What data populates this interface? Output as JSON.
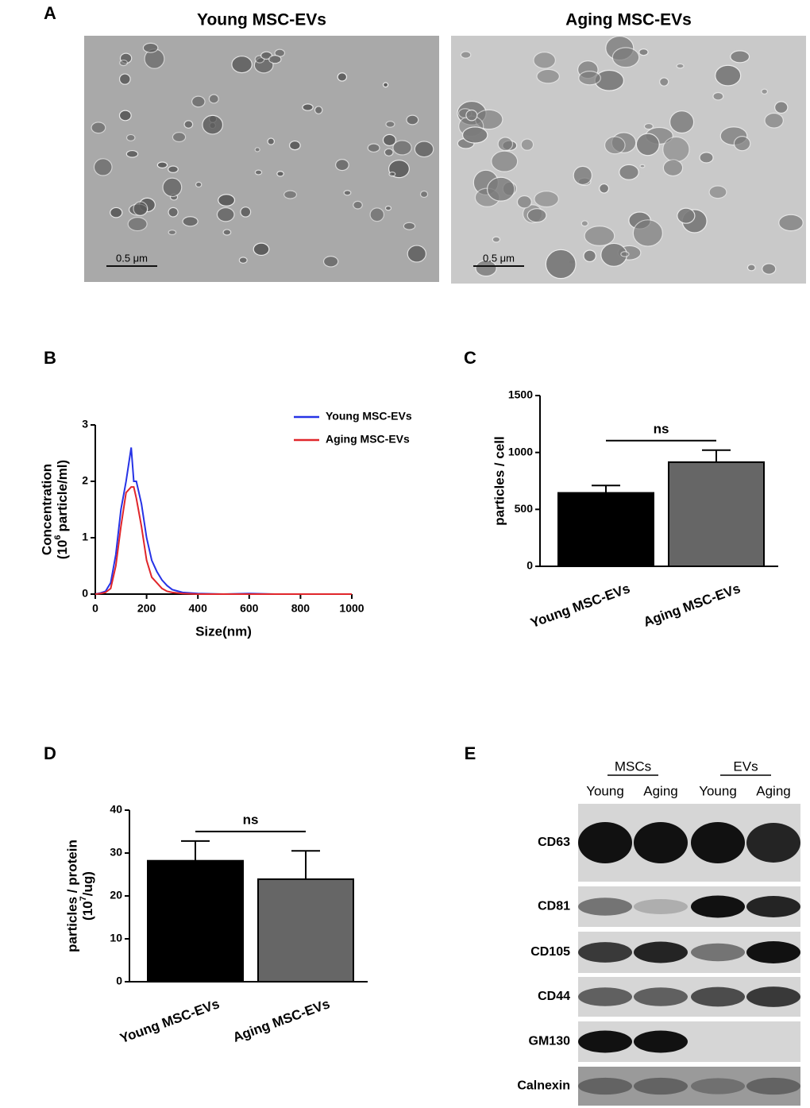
{
  "panel_labels": [
    "A",
    "B",
    "C",
    "D",
    "E"
  ],
  "micrographs": [
    {
      "title": "Young MSC-EVs",
      "scale": "0.5 μm"
    },
    {
      "title": "Aging MSC-EVs",
      "scale": "0.5 μm"
    }
  ],
  "chart_data": [
    {
      "type": "line",
      "x_label": "Size(nm)",
      "y_label": "Concentration",
      "y_label_parts": [
        "(10",
        "6",
        "particle/ml)"
      ],
      "x": [
        0,
        20,
        40,
        60,
        80,
        100,
        120,
        140,
        150,
        160,
        180,
        200,
        220,
        240,
        260,
        280,
        300,
        340,
        400,
        500,
        600,
        700,
        800,
        900,
        1000
      ],
      "series": [
        {
          "name": "Young MSC-EVs",
          "color": "#2633e6",
          "values": [
            0,
            0.02,
            0.05,
            0.2,
            0.7,
            1.5,
            2.0,
            2.6,
            2.0,
            2.0,
            1.6,
            1.0,
            0.6,
            0.4,
            0.25,
            0.15,
            0.08,
            0.03,
            0.01,
            0,
            0.01,
            0,
            0,
            0,
            0
          ]
        },
        {
          "name": "Aging MSC-EVs",
          "color": "#e0262b",
          "values": [
            0,
            0.01,
            0.03,
            0.1,
            0.5,
            1.2,
            1.8,
            1.9,
            1.9,
            1.7,
            1.2,
            0.6,
            0.3,
            0.2,
            0.1,
            0.05,
            0.03,
            0.01,
            0,
            0,
            0,
            0,
            0,
            0,
            0
          ]
        }
      ],
      "xlim": [
        0,
        1000
      ],
      "xticks": [
        0,
        200,
        400,
        600,
        800,
        1000
      ],
      "ylim": [
        0,
        3
      ],
      "yticks": [
        0,
        1,
        2,
        3
      ],
      "legend": "upper right"
    },
    {
      "type": "bar",
      "y_label": "particles / cell",
      "categories": [
        "Young MSC-EVs",
        "Aging MSC-EVs"
      ],
      "values": [
        645,
        915
      ],
      "errors": [
        65,
        105
      ],
      "colors": [
        "#000000",
        "#666666"
      ],
      "ylim": [
        0,
        1500
      ],
      "yticks": [
        0,
        500,
        1000,
        1500
      ],
      "annotation": "ns"
    },
    {
      "type": "bar",
      "y_label": "particles / protein",
      "y_label_parts": [
        "(10",
        "7",
        "/ug)"
      ],
      "categories": [
        "Young MSC-EVs",
        "Aging MSC-EVs"
      ],
      "values": [
        28.2,
        23.9
      ],
      "errors": [
        4.6,
        6.6
      ],
      "colors": [
        "#000000",
        "#666666"
      ],
      "ylim": [
        0,
        40
      ],
      "yticks": [
        0,
        10,
        20,
        30,
        40
      ],
      "annotation": "ns"
    }
  ],
  "blot": {
    "groups": [
      "MSCs",
      "EVs"
    ],
    "lanes": [
      "Young",
      "Aging",
      "Young",
      "Aging"
    ],
    "rows": [
      "CD63",
      "CD81",
      "CD105",
      "CD44",
      "GM130",
      "Calnexin"
    ]
  }
}
